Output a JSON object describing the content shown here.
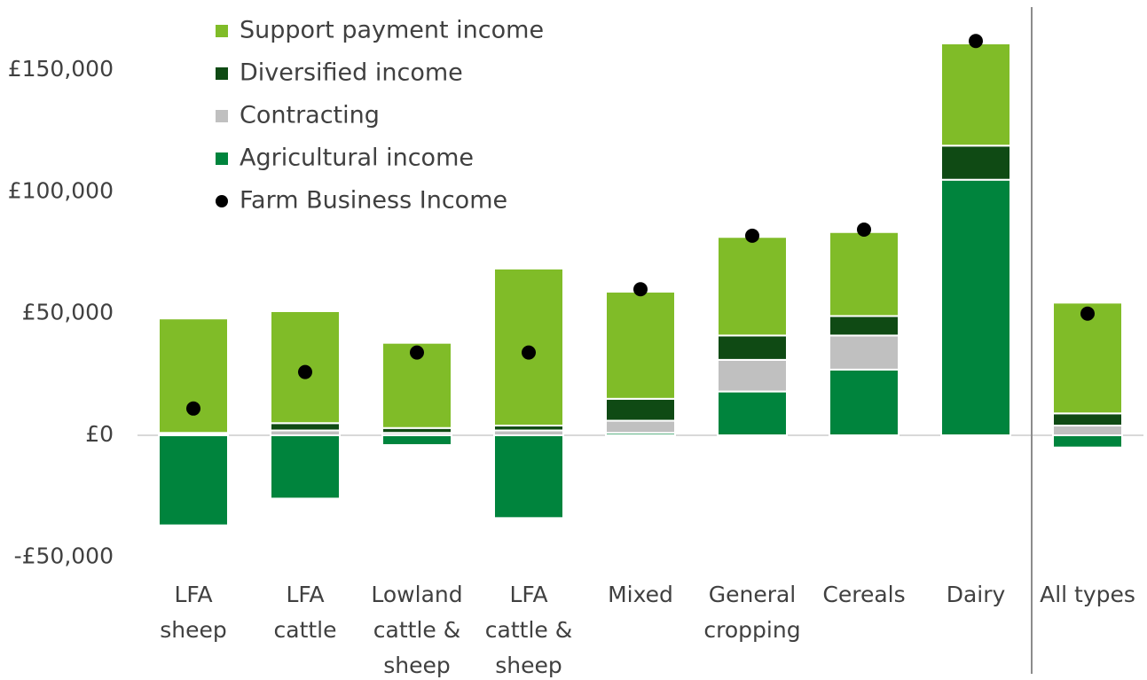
{
  "chart_data": {
    "type": "bar",
    "stacked": true,
    "categories": [
      [
        "LFA",
        "sheep"
      ],
      [
        "LFA",
        "cattle"
      ],
      [
        "Lowland",
        "cattle &",
        "sheep"
      ],
      [
        "LFA",
        "cattle &",
        "sheep"
      ],
      [
        "Mixed"
      ],
      [
        "General",
        "cropping"
      ],
      [
        "Cereals"
      ],
      [
        "Dairy"
      ],
      [
        "All types"
      ]
    ],
    "series": [
      {
        "name": "Agricultural income",
        "color": "#00843d",
        "values": [
          -37000,
          -26000,
          -4000,
          -34000,
          1000,
          18000,
          27000,
          105000,
          -5000
        ]
      },
      {
        "name": "Contracting",
        "color": "#c0c0c0",
        "values": [
          500,
          2000,
          1000,
          2000,
          5000,
          13000,
          14000,
          0,
          4000
        ]
      },
      {
        "name": "Diversified income",
        "color": "#0f4a14",
        "values": [
          500,
          3000,
          2000,
          2000,
          9000,
          10000,
          8000,
          14000,
          5000
        ]
      },
      {
        "name": "Support payment income",
        "color": "#80bc28",
        "values": [
          47000,
          46000,
          35000,
          64500,
          44000,
          40500,
          34500,
          42000,
          45500
        ]
      },
      {
        "name": "Farm Business Income",
        "type": "scatter",
        "color": "#000000",
        "values": [
          11000,
          26000,
          34000,
          34000,
          60000,
          82000,
          84500,
          162000,
          50000
        ]
      }
    ],
    "legend_order": [
      3,
      2,
      1,
      0,
      4
    ],
    "ylim": [
      -55000,
      165000
    ],
    "yticks": [
      {
        "value": -50000,
        "label": "-£50,000"
      },
      {
        "value": 0,
        "label": "£0"
      },
      {
        "value": 50000,
        "label": "£50,000"
      },
      {
        "value": 100000,
        "label": "£100,000"
      },
      {
        "value": 150000,
        "label": "£150,000"
      }
    ],
    "grid": false
  }
}
